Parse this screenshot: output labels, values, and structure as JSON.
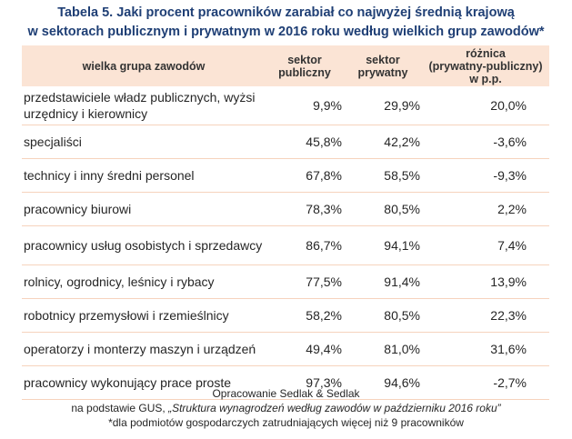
{
  "title": {
    "line1": "Tabela 5. Jaki procent pracowników zarabiał co najwyżej średnią krajową",
    "line2": "w sektorach publicznym i prywatnym w 2016 roku według wielkich grup zawodów*"
  },
  "table": {
    "headers": {
      "group": "wielka grupa zawodów",
      "public_1": "sektor",
      "public_2": "publiczny",
      "private_1": "sektor",
      "private_2": "prywatny",
      "diff_1": "różnica",
      "diff_2": "(prywatny-publiczny)",
      "diff_3": "w p.p."
    },
    "rows": [
      {
        "group": "przedstawiciele władz publicznych, wyżsi urzędnicy i kierownicy",
        "public": "9,9%",
        "private": "29,9%",
        "diff": "20,0%"
      },
      {
        "group": "specjaliści",
        "public": "45,8%",
        "private": "42,2%",
        "diff": "-3,6%"
      },
      {
        "group": "technicy i inny średni personel",
        "public": "67,8%",
        "private": "58,5%",
        "diff": "-9,3%"
      },
      {
        "group": "pracownicy biurowi",
        "public": "78,3%",
        "private": "80,5%",
        "diff": "2,2%"
      },
      {
        "group": "pracownicy usług osobistych i sprzedawcy",
        "public": "86,7%",
        "private": "94,1%",
        "diff": "7,4%"
      },
      {
        "group": "rolnicy, ogrodnicy, leśnicy i rybacy",
        "public": "77,5%",
        "private": "91,4%",
        "diff": "13,9%"
      },
      {
        "group": "robotnicy przemysłowi i rzemieślnicy",
        "public": "58,2%",
        "private": "80,5%",
        "diff": "22,3%"
      },
      {
        "group": "operatorzy i monterzy maszyn i urządzeń",
        "public": "49,4%",
        "private": "81,0%",
        "diff": "31,6%"
      },
      {
        "group": "pracownicy wykonujący prace proste",
        "public": "97,3%",
        "private": "94,6%",
        "diff": "-2,7%"
      }
    ]
  },
  "footer": {
    "line1": "Opracowanie Sedlak & Sedlak",
    "line2_prefix": "na podstawie GUS, ",
    "line2_source": "„Struktura wynagrodzeń według zawodów w październiku 2016 roku”",
    "line3": "*dla podmiotów gospodarczych zatrudniających więcej niż 9 pracowników"
  },
  "colors": {
    "title": "#1f3f75",
    "header_bg": "#fbe4d5",
    "row_border": "#f6d3bd"
  }
}
